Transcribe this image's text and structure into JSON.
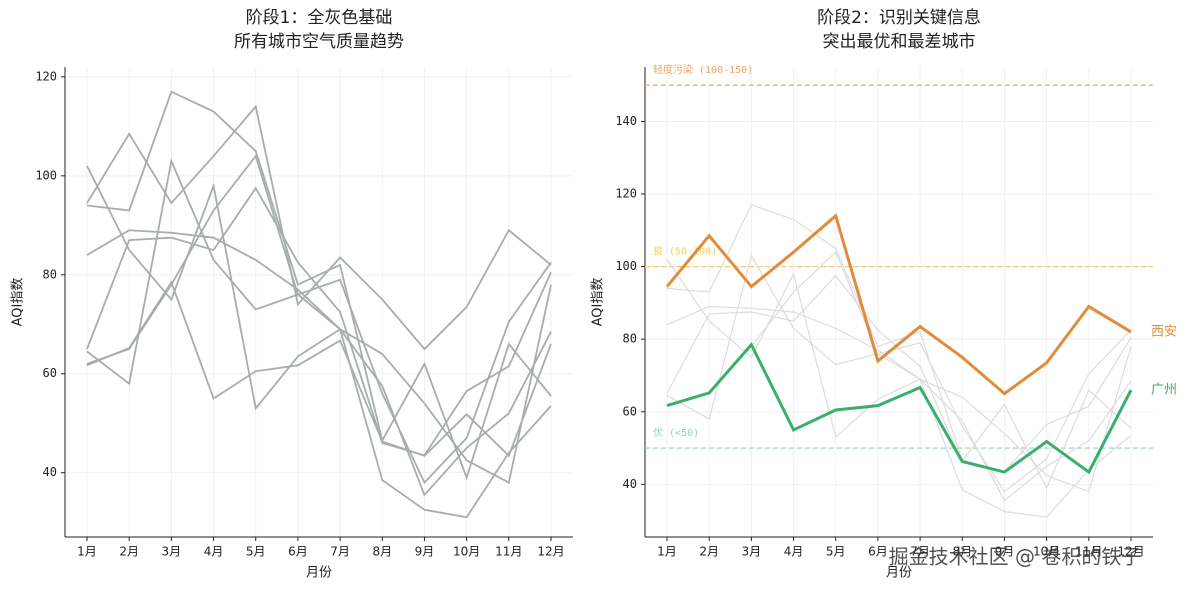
{
  "chart_data": [
    {
      "type": "line",
      "title": "阶段1：全灰色基础",
      "subtitle": "所有城市空气质量趋势",
      "x_label": "月份",
      "y_label": "AQI指数",
      "categories": [
        "1月",
        "2月",
        "3月",
        "4月",
        "5月",
        "6月",
        "7月",
        "8月",
        "9月",
        "10月",
        "11月",
        "12月"
      ],
      "ylim": [
        27,
        122
      ],
      "yticks": [
        40,
        60,
        80,
        100,
        120
      ],
      "grid": true,
      "color": "#a7adad",
      "series": [
        {
          "values": [
            94.5,
            108.5,
            94.5,
            104,
            114,
            74,
            83.5,
            75,
            65,
            73.5,
            89,
            82
          ]
        },
        {
          "values": [
            61.7,
            65.2,
            78.5,
            55,
            60.5,
            61.7,
            66.7,
            46.3,
            43.4,
            51.8,
            43.4,
            66
          ]
        },
        {
          "values": [
            94,
            93,
            117,
            113,
            105,
            78,
            82,
            46.5,
            62,
            39,
            66,
            55.5
          ]
        },
        {
          "values": [
            102,
            85,
            75,
            98,
            53,
            63.5,
            69,
            57.5,
            35.5,
            45,
            52,
            68.5
          ]
        },
        {
          "values": [
            84,
            89,
            88.5,
            87.5,
            83,
            77,
            69,
            38.5,
            32.5,
            31,
            44,
            53.5
          ]
        },
        {
          "values": [
            65,
            87,
            87.5,
            85,
            97.5,
            82.5,
            72.5,
            46,
            43.5,
            56.5,
            61.5,
            80.5
          ]
        },
        {
          "values": [
            64.5,
            58,
            103,
            83,
            73,
            76,
            69,
            64,
            54,
            42.5,
            38,
            78
          ]
        },
        {
          "values": [
            62,
            65,
            78,
            93,
            104,
            76,
            79,
            56,
            38,
            47,
            70.5,
            82.5
          ]
        }
      ]
    },
    {
      "type": "line",
      "title": "阶段2：识别关键信息",
      "subtitle": "突出最优和最差城市",
      "x_label": "月份",
      "y_label": "AQI指数",
      "categories": [
        "1月",
        "2月",
        "3月",
        "4月",
        "5月",
        "6月",
        "7月",
        "8月",
        "9月",
        "10月",
        "11月",
        "12月"
      ],
      "ylim": [
        25.5,
        155
      ],
      "yticks": [
        40,
        60,
        80,
        100,
        120,
        140
      ],
      "grid": true,
      "color": "#dcdcdc",
      "reference_lines": [
        {
          "value": 150,
          "label": "轻度污染 (100-150)",
          "color": "#e8a868"
        },
        {
          "value": 100,
          "label": "良 (50-100)",
          "color": "#f0cf62"
        },
        {
          "value": 50,
          "label": "优 (<50)",
          "color": "#8fd4ad"
        }
      ],
      "series": [
        {
          "values": [
            94,
            93,
            117,
            113,
            105,
            78,
            82,
            46.5,
            62,
            39,
            66,
            55.5
          ]
        },
        {
          "values": [
            102,
            85,
            75,
            98,
            53,
            63.5,
            69,
            57.5,
            35.5,
            45,
            52,
            68.5
          ]
        },
        {
          "values": [
            84,
            89,
            88.5,
            87.5,
            83,
            77,
            69,
            38.5,
            32.5,
            31,
            44,
            53.5
          ]
        },
        {
          "values": [
            65,
            87,
            87.5,
            85,
            97.5,
            82.5,
            72.5,
            46,
            43.5,
            56.5,
            61.5,
            80.5
          ]
        },
        {
          "values": [
            64.5,
            58,
            103,
            83,
            73,
            76,
            69,
            64,
            54,
            42.5,
            38,
            78
          ]
        },
        {
          "values": [
            62,
            65,
            78,
            93,
            104,
            76,
            79,
            56,
            38,
            47,
            70.5,
            82.5
          ]
        },
        {
          "name": "西安",
          "color": "#e08c3c",
          "values": [
            94.5,
            108.5,
            94.5,
            104,
            114,
            74,
            83.5,
            75,
            65,
            73.5,
            89,
            82
          ]
        },
        {
          "name": "广州",
          "color": "#3aaf6c",
          "values": [
            61.7,
            65.2,
            78.5,
            55,
            60.5,
            61.7,
            66.7,
            46.3,
            43.4,
            51.8,
            43.4,
            66
          ]
        }
      ]
    }
  ],
  "watermark": "掘金技术社区 @ 卷积的铁子"
}
